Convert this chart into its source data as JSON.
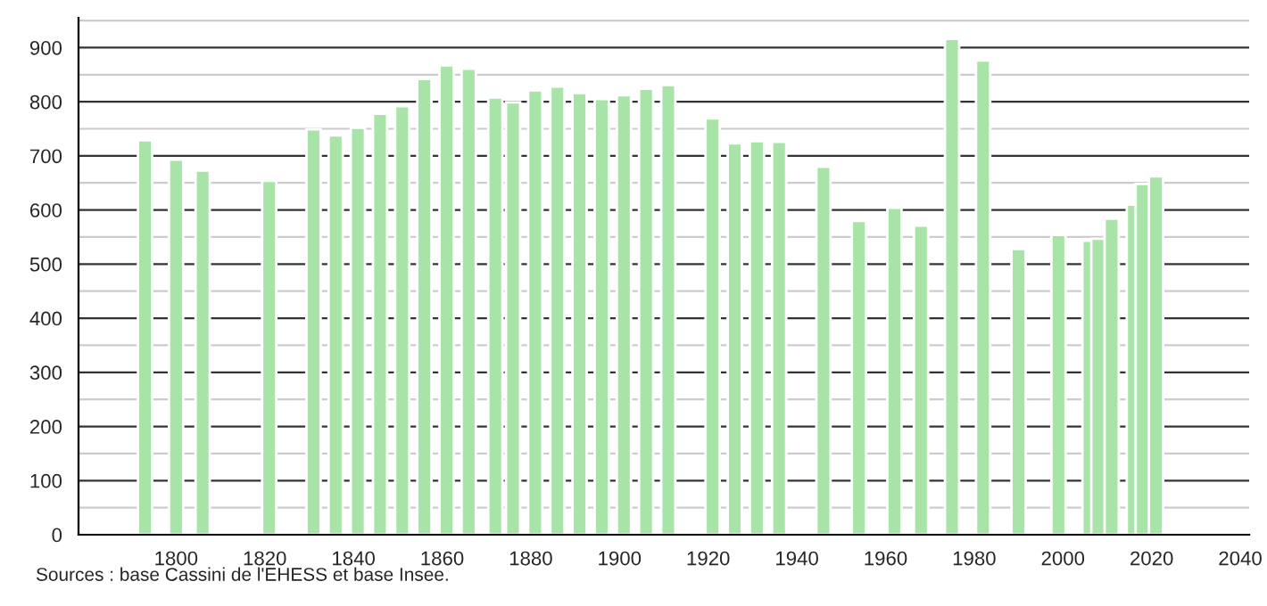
{
  "chart_data": {
    "type": "bar",
    "x": [
      1793,
      1800,
      1806,
      1821,
      1831,
      1836,
      1841,
      1846,
      1851,
      1856,
      1861,
      1866,
      1872,
      1876,
      1881,
      1886,
      1891,
      1896,
      1901,
      1906,
      1911,
      1921,
      1926,
      1931,
      1936,
      1946,
      1954,
      1962,
      1968,
      1975,
      1982,
      1990,
      1999,
      2006,
      2008,
      2011,
      2016,
      2018,
      2021
    ],
    "values": [
      729,
      693,
      673,
      654,
      749,
      738,
      752,
      778,
      792,
      842,
      867,
      861,
      808,
      799,
      821,
      828,
      816,
      805,
      812,
      824,
      831,
      769,
      723,
      727,
      726,
      680,
      580,
      604,
      571,
      916,
      876,
      528,
      554,
      543,
      547,
      584,
      610,
      648,
      662
    ],
    "color": "#a8e4a8",
    "xlim": [
      1778,
      2042
    ],
    "xticks": [
      1800,
      1820,
      1840,
      1860,
      1880,
      1900,
      1920,
      1940,
      1960,
      1980,
      2000,
      2020,
      2040
    ],
    "ylim": [
      0,
      955
    ],
    "yticks": [
      0,
      {
        "value": 50,
        "label": null
      },
      100,
      {
        "value": 150,
        "label": null
      },
      200,
      {
        "value": 250,
        "label": null
      },
      300,
      {
        "value": 350,
        "label": null
      },
      400,
      {
        "value": 450,
        "label": null
      },
      500,
      {
        "value": 550,
        "label": null
      },
      600,
      {
        "value": 650,
        "label": null
      },
      700,
      {
        "value": 750,
        "label": null
      },
      800,
      {
        "value": 850,
        "label": null
      },
      900,
      {
        "value": 950,
        "label": null
      }
    ],
    "grid": "y",
    "annotations": [
      "Sources : base Cassini de l'EHESS et base Insee."
    ]
  }
}
